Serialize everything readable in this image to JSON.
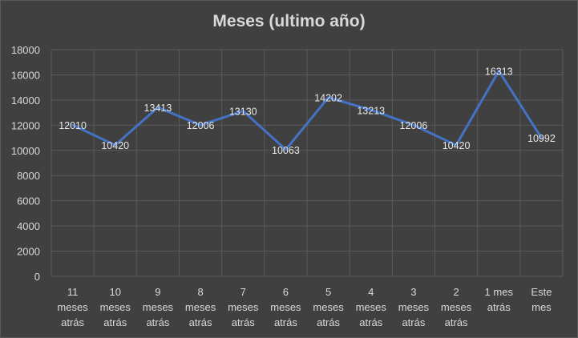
{
  "chart_data": {
    "type": "line",
    "title": "Meses (ultimo año)",
    "xlabel": "",
    "ylabel": "",
    "ylim": [
      0,
      18000
    ],
    "yticks": [
      0,
      2000,
      4000,
      6000,
      8000,
      10000,
      12000,
      14000,
      16000,
      18000
    ],
    "grid": true,
    "legend": "none",
    "categories": [
      [
        "11",
        "meses",
        "atrás"
      ],
      [
        "10",
        "meses",
        "atrás"
      ],
      [
        "9",
        "meses",
        "atrás"
      ],
      [
        "8",
        "meses",
        "atrás"
      ],
      [
        "7",
        "meses",
        "atrás"
      ],
      [
        "6",
        "meses",
        "atrás"
      ],
      [
        "5",
        "meses",
        "atrás"
      ],
      [
        "4",
        "meses",
        "atrás"
      ],
      [
        "3",
        "meses",
        "atrás"
      ],
      [
        "2",
        "meses",
        "atrás"
      ],
      [
        "1 mes",
        "atrás"
      ],
      [
        "Este",
        "mes"
      ]
    ],
    "series": [
      {
        "color": "#4472c4",
        "values": [
          12010,
          10420,
          13413,
          12006,
          13130,
          10063,
          14202,
          13213,
          12006,
          10420,
          16313,
          10992
        ]
      }
    ]
  }
}
